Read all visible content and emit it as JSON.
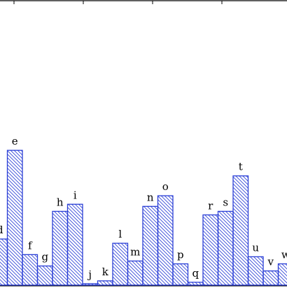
{
  "chart_data": {
    "type": "bar",
    "categories": [
      "d",
      "e",
      "f",
      "g",
      "h",
      "i",
      "j",
      "k",
      "l",
      "m",
      "n",
      "o",
      "p",
      "q",
      "r",
      "s",
      "t",
      "u",
      "v",
      "w"
    ],
    "values": [
      6.5,
      19.0,
      4.3,
      2.7,
      10.4,
      11.4,
      0.2,
      0.6,
      5.9,
      3.4,
      11.1,
      12.6,
      3.0,
      0.4,
      9.9,
      10.4,
      15.4,
      4.0,
      2.0,
      3.0
    ],
    "ylim": [
      0,
      40
    ],
    "grid": false,
    "bar_fill": "hatched",
    "bar_color": "#2b3fd6"
  }
}
